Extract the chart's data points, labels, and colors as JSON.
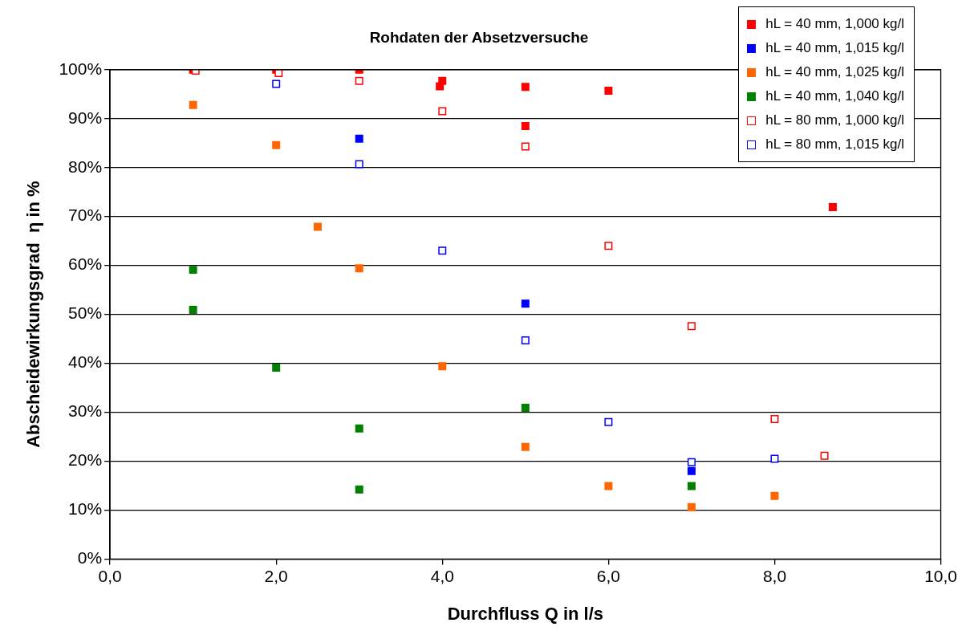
{
  "chart_data": {
    "type": "scatter",
    "title": "Rohdaten der Absetzversuche",
    "xlabel": "Durchfluss Q in l/s",
    "ylabel": "Abscheidewirkungsgrad  η in %",
    "xlim": [
      0,
      10
    ],
    "xticks": [
      {
        "value": 0,
        "label": "0,0"
      },
      {
        "value": 2,
        "label": "2,0"
      },
      {
        "value": 4,
        "label": "4,0"
      },
      {
        "value": 6,
        "label": "6,0"
      },
      {
        "value": 8,
        "label": "8,0"
      },
      {
        "value": 10,
        "label": "10,0"
      }
    ],
    "ylim": [
      0,
      100
    ],
    "yticks": [
      {
        "value": 0,
        "label": "0%"
      },
      {
        "value": 10,
        "label": "10%"
      },
      {
        "value": 20,
        "label": "20%"
      },
      {
        "value": 30,
        "label": "30%"
      },
      {
        "value": 40,
        "label": "40%"
      },
      {
        "value": 50,
        "label": "50%"
      },
      {
        "value": 60,
        "label": "60%"
      },
      {
        "value": 70,
        "label": "70%"
      },
      {
        "value": 80,
        "label": "80%"
      },
      {
        "value": 90,
        "label": "90%"
      },
      {
        "value": 100,
        "label": "100%"
      }
    ],
    "grid": "y",
    "legend": "top right",
    "marker": "square",
    "series": [
      {
        "name": "hL = 40 mm, 1,000 kg/l",
        "color": "#ff0000",
        "x": [
          1,
          2,
          3,
          4,
          3.97,
          5,
          5,
          6,
          8.7
        ],
        "values": [
          100,
          100,
          100,
          97.7,
          96.6,
          96.5,
          88.5,
          95.7,
          71.9
        ]
      },
      {
        "name": "hL = 40 mm, 1,015 kg/l",
        "color": "#0000ff",
        "x": [
          3,
          5,
          7
        ],
        "values": [
          85.9,
          52.2,
          18
        ]
      },
      {
        "name": "hL = 40 mm, 1,025 kg/l",
        "color": "#ff6600",
        "x": [
          1,
          2,
          2.5,
          3,
          4,
          5,
          6,
          7,
          8
        ],
        "values": [
          92.8,
          84.6,
          67.9,
          59.4,
          39.4,
          22.9,
          14.9,
          10.6,
          12.9
        ]
      },
      {
        "name": "hL = 40 mm, 1,040 kg/l",
        "color": "#008000",
        "x": [
          1,
          1,
          2,
          3,
          3,
          5,
          7
        ],
        "values": [
          59.1,
          50.9,
          39.1,
          26.7,
          14.2,
          30.9,
          14.9
        ]
      },
      {
        "name": "hL = 80 mm, 1,000 kg/l",
        "color": "#ff0000",
        "marker": "square_open",
        "x": [
          1.03,
          2.03,
          3,
          4,
          5,
          6,
          7,
          8,
          8.6
        ],
        "values": [
          99.8,
          99.3,
          97.7,
          91.5,
          84.3,
          64,
          47.6,
          28.6,
          21.1
        ]
      },
      {
        "name": "hL = 80 mm, 1,015 kg/l",
        "color": "#0000ff",
        "marker": "square_open",
        "x": [
          2,
          3,
          4,
          5,
          6,
          7,
          8
        ],
        "values": [
          97.1,
          80.7,
          63,
          44.7,
          28,
          19.8,
          20.5
        ]
      }
    ]
  }
}
